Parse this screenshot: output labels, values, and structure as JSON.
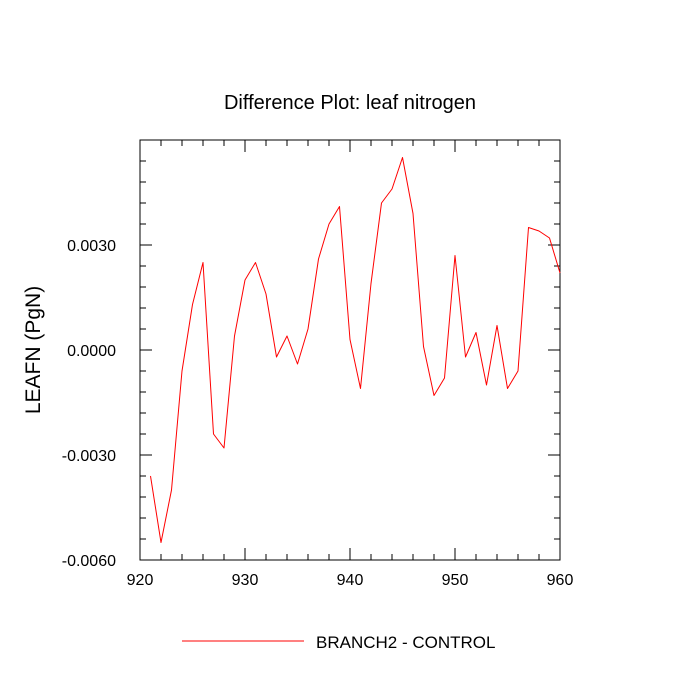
{
  "chart_data": {
    "type": "line",
    "title": "Difference Plot: leaf nitrogen",
    "xlabel": "",
    "ylabel": "LEAFN  (PgN)",
    "xlim": [
      920,
      960
    ],
    "ylim": [
      -0.006,
      0.006
    ],
    "x_ticks": [
      "920",
      "930",
      "940",
      "950",
      "960"
    ],
    "y_ticks": [
      "-0.0060",
      "-0.0030",
      "0.0000",
      "0.0030"
    ],
    "grid": false,
    "legend_position": "bottom-center",
    "series": [
      {
        "name": "BRANCH2 - CONTROL",
        "color": "#ff0000",
        "x": [
          921,
          922,
          923,
          924,
          925,
          926,
          927,
          928,
          929,
          930,
          931,
          932,
          933,
          934,
          935,
          936,
          937,
          938,
          939,
          940,
          941,
          942,
          943,
          944,
          945,
          946,
          947,
          948,
          949,
          950,
          951,
          952,
          953,
          954,
          955,
          956,
          957,
          958,
          959,
          960
        ],
        "values": [
          -0.0036,
          -0.0055,
          -0.004,
          -0.0006,
          0.0013,
          0.0025,
          -0.0024,
          -0.0028,
          0.0004,
          0.002,
          0.0025,
          0.0016,
          -0.0002,
          0.0004,
          -0.0004,
          0.0006,
          0.0026,
          0.0036,
          0.0041,
          0.0003,
          -0.0011,
          0.0019,
          0.0042,
          0.0046,
          0.0055,
          0.0039,
          0.0001,
          -0.0013,
          -0.0008,
          0.0027,
          -0.0002,
          0.0005,
          -0.001,
          0.0007,
          -0.0011,
          -0.0006,
          0.0035,
          0.0034,
          0.0032,
          0.0022
        ]
      }
    ]
  }
}
